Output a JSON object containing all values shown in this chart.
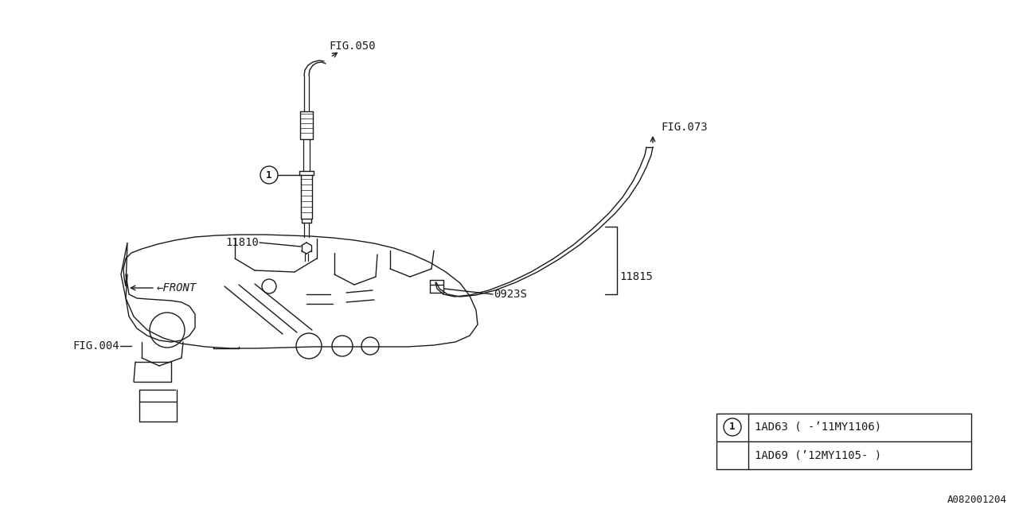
{
  "bg_color": "#ffffff",
  "line_color": "#1a1a1a",
  "fig050_label": "FIG.050",
  "fig073_label": "FIG.073",
  "fig004_label": "FIG.004",
  "part_11810": "11810",
  "part_11815": "11815",
  "part_0923S": "0923S",
  "legend_row1": "1AD63 ( -’11MY1106)",
  "legend_row2": "1AD69 (’12MY1105- )",
  "diagram_id": "A082001204",
  "circle_label": "1",
  "front_label": "←FRONT"
}
